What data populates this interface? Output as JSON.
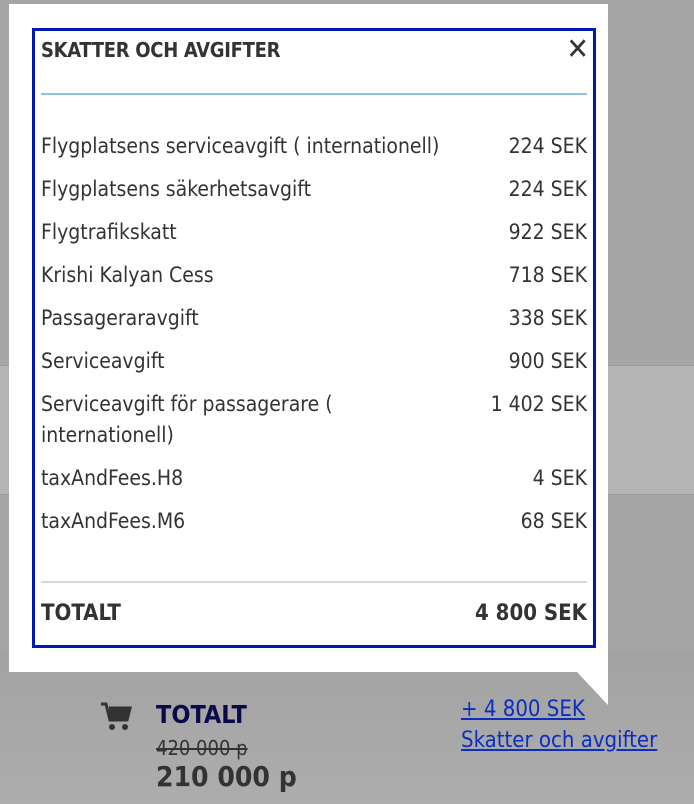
{
  "popover": {
    "title": "SKATTER OCH AVGIFTER",
    "close_icon": "close-icon",
    "items": [
      {
        "label": "Flygplatsens serviceavgift ( internationell)",
        "amount": "224 SEK"
      },
      {
        "label": "Flygplatsens säkerhetsavgift",
        "amount": "224 SEK"
      },
      {
        "label": "Flygtrafikskatt",
        "amount": "922 SEK"
      },
      {
        "label": "Krishi Kalyan Cess",
        "amount": "718 SEK"
      },
      {
        "label": "Passageraravgift",
        "amount": "338 SEK"
      },
      {
        "label": "Serviceavgift",
        "amount": "900 SEK"
      },
      {
        "label": "Serviceavgift för passagerare ( internationell)",
        "amount": "1 402 SEK"
      },
      {
        "label": "taxAndFees.H8",
        "amount": "4 SEK"
      },
      {
        "label": "taxAndFees.M6",
        "amount": "68 SEK"
      }
    ],
    "total_label": "TOTALT",
    "total_amount": "4 800 SEK"
  },
  "footer": {
    "cart_icon": "cart-icon",
    "total_label": "TOTALT",
    "old_price": "420 000 p",
    "new_price": "210 000 p",
    "fees_amount_link": "+ 4 800 SEK",
    "fees_link": "Skatter och avgifter"
  },
  "colors": {
    "border": "#0019b0",
    "link": "#0c2dbf",
    "rule": "#8ec3e0"
  }
}
